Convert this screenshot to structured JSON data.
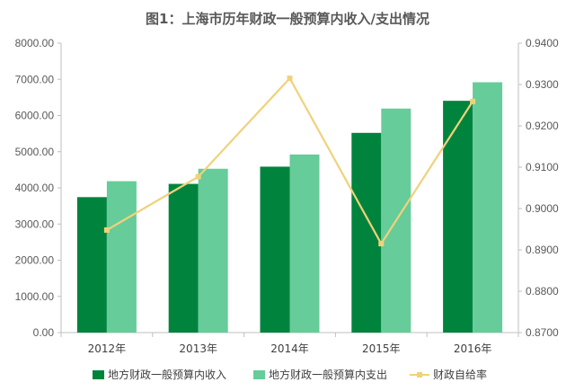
{
  "colors": {
    "income": "#00843D",
    "expenditure": "#66CC99",
    "ratio": "#F0D27A",
    "axis": "#BFBFBF",
    "text": "#595959"
  },
  "chart_data": {
    "type": "bar",
    "title": "图1：上海市历年财政一般预算内收入/支出情况",
    "categories": [
      "2012年",
      "2013年",
      "2014年",
      "2015年",
      "2016年"
    ],
    "y_left": {
      "ylim": [
        0,
        8000
      ],
      "ticks": [
        "0.00",
        "1000.00",
        "2000.00",
        "3000.00",
        "4000.00",
        "5000.00",
        "6000.00",
        "7000.00",
        "8000.00"
      ]
    },
    "y_right": {
      "ylim": [
        0.87,
        0.94
      ],
      "ticks": [
        "0.8700",
        "0.8800",
        "0.8900",
        "0.9000",
        "0.9100",
        "0.9200",
        "0.9300",
        "0.9400"
      ]
    },
    "series": [
      {
        "name": "地方财政一般预算内收入",
        "type": "bar",
        "axis": "left",
        "values": [
          3744,
          4110,
          4586,
          5520,
          6406
        ]
      },
      {
        "name": "地方财政一般预算内支出",
        "type": "bar",
        "axis": "left",
        "values": [
          4184,
          4528,
          4923,
          6192,
          6919
        ]
      },
      {
        "name": "财政自给率",
        "type": "line",
        "axis": "right",
        "values": [
          0.8948,
          0.9077,
          0.9315,
          0.8915,
          0.9259
        ]
      }
    ],
    "legend_position": "bottom",
    "grid": false
  }
}
